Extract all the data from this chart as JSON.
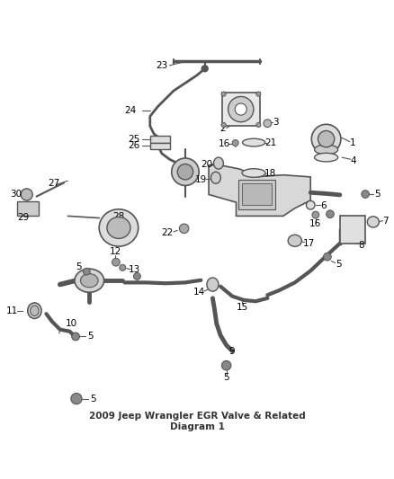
{
  "title": "2009 Jeep Wrangler EGR Valve & Related\nDiagram 1",
  "background_color": "#ffffff",
  "title_fontsize": 7.5,
  "title_color": "#333333",
  "label_fontsize": 7.5,
  "label_color": "#000000",
  "line_color": "#555555",
  "part_color": "#888888"
}
